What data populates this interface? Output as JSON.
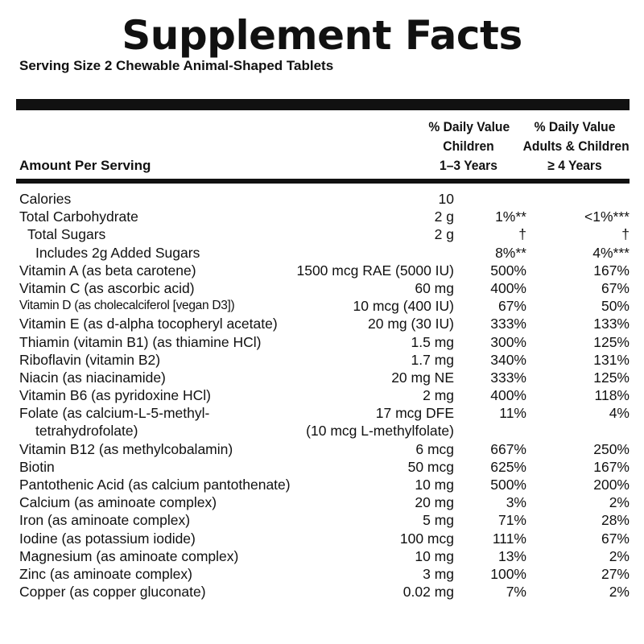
{
  "title": "Supplement Facts",
  "serving_size": "Serving Size 2 Chewable Animal-Shaped Tablets",
  "columns": {
    "amount_per_serving": "Amount Per Serving",
    "children": [
      "% Daily Value",
      "Children",
      "1–3 Years"
    ],
    "adults": [
      "% Daily Value",
      "Adults & Children",
      "≥ 4 Years"
    ]
  },
  "rows": [
    {
      "name": "Calories",
      "amount": "10",
      "children": "",
      "adults": ""
    },
    {
      "name": "Total Carbohydrate",
      "amount": "2 g",
      "children": "1%**",
      "adults": "<1%***"
    },
    {
      "name": "Total Sugars",
      "amount": "2 g",
      "children": "†",
      "adults": "†"
    },
    {
      "name": "Includes 2g Added Sugars",
      "amount": "",
      "children": "8%**",
      "adults": "4%***"
    },
    {
      "name": "Vitamin A (as beta carotene)",
      "amount": "1500 mcg RAE (5000 IU)",
      "children": "500%",
      "adults": "167%"
    },
    {
      "name": "Vitamin C (as ascorbic acid)",
      "amount": "60 mg",
      "children": "400%",
      "adults": "67%"
    },
    {
      "name": "Vitamin D (as cholecalciferol [vegan D3])",
      "amount": "10 mcg (400 IU)",
      "children": "67%",
      "adults": "50%"
    },
    {
      "name": "Vitamin E (as d-alpha tocopheryl acetate)",
      "amount": "20 mg (30 IU)",
      "children": "333%",
      "adults": "133%"
    },
    {
      "name": "Thiamin (vitamin B1) (as thiamine HCl)",
      "amount": "1.5 mg",
      "children": "300%",
      "adults": "125%"
    },
    {
      "name": "Riboflavin (vitamin B2)",
      "amount": "1.7 mg",
      "children": "340%",
      "adults": "131%"
    },
    {
      "name": "Niacin (as niacinamide)",
      "amount": "20 mg NE",
      "children": "333%",
      "adults": "125%"
    },
    {
      "name": "Vitamin B6 (as pyridoxine HCl)",
      "amount": "2 mg",
      "children": "400%",
      "adults": "118%"
    },
    {
      "name": "Folate (as calcium-L-5-methyl-",
      "amount": "17 mcg DFE",
      "children": "11%",
      "adults": "4%"
    },
    {
      "name": "tetrahydrofolate)",
      "amount": "(10 mcg L-methylfolate)",
      "children": "",
      "adults": ""
    },
    {
      "name": "Vitamin B12 (as methylcobalamin)",
      "amount": "6 mcg",
      "children": "667%",
      "adults": "250%"
    },
    {
      "name": "Biotin",
      "amount": "50 mcg",
      "children": "625%",
      "adults": "167%"
    },
    {
      "name": "Pantothenic Acid (as calcium pantothenate)",
      "amount": "10 mg",
      "children": "500%",
      "adults": "200%"
    },
    {
      "name": "Calcium (as aminoate complex)",
      "amount": "20 mg",
      "children": "3%",
      "adults": "2%"
    },
    {
      "name": "Iron (as aminoate complex)",
      "amount": "5 mg",
      "children": "71%",
      "adults": "28%"
    },
    {
      "name": "Iodine (as potassium iodide)",
      "amount": "100 mcg",
      "children": "111%",
      "adults": "67%"
    },
    {
      "name": "Magnesium (as aminoate complex)",
      "amount": "10 mg",
      "children": "13%",
      "adults": "2%"
    },
    {
      "name": "Zinc (as aminoate complex)",
      "amount": "3 mg",
      "children": "100%",
      "adults": "27%"
    },
    {
      "name": "Copper (as copper gluconate)",
      "amount": "0.02 mg",
      "children": "7%",
      "adults": "2%"
    }
  ]
}
